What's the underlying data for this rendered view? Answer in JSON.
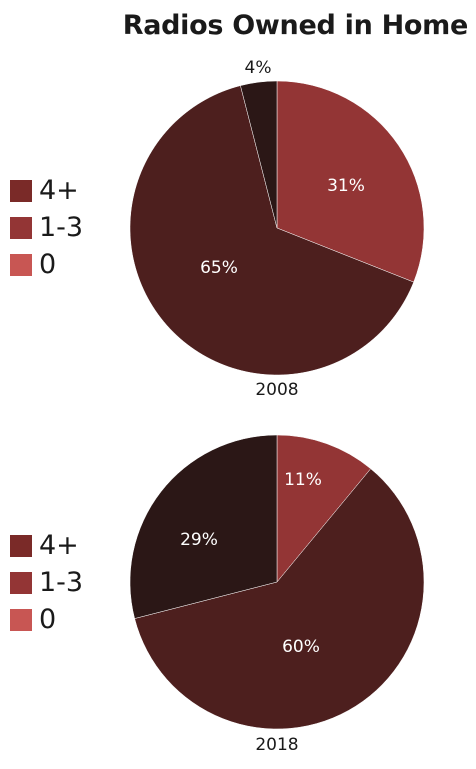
{
  "title": "Radios Owned in Home",
  "colors": {
    "0": "#c85653",
    "1-3": "#933535",
    "4+": "#4d1f1e",
    "4+_legend": "#7a2a28"
  },
  "chart_data": [
    {
      "type": "pie",
      "label": "2008",
      "legend": [
        "4+",
        "1-3",
        "0"
      ],
      "slices": [
        {
          "name": "1-3",
          "value": 31,
          "label": "31%",
          "color": "#933535"
        },
        {
          "name": "4+",
          "value": 65,
          "label": "65%",
          "color": "#4d1f1e"
        },
        {
          "name": "4+",
          "value": 4,
          "label": "4%",
          "color": "#2b1716"
        }
      ]
    },
    {
      "type": "pie",
      "label": "2018",
      "legend": [
        "4+",
        "1-3",
        "0"
      ],
      "slices": [
        {
          "name": "1-3",
          "value": 11,
          "label": "11%",
          "color": "#933535"
        },
        {
          "name": "4+",
          "value": 60,
          "label": "60%",
          "color": "#4d1f1e"
        },
        {
          "name": "4+",
          "value": 29,
          "label": "29%",
          "color": "#2b1716"
        }
      ]
    }
  ],
  "legend_colors": [
    "#7a2a28",
    "#933535",
    "#c85653"
  ]
}
